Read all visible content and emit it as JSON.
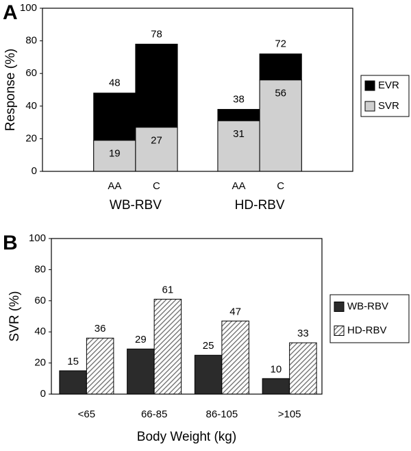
{
  "chart_data": [
    {
      "type": "bar",
      "mode": "overlay",
      "panel": "A",
      "ylabel": "Response (%)",
      "categories": [
        "AA",
        "C",
        "AA",
        "C"
      ],
      "groups": [
        "WB-RBV",
        "HD-RBV"
      ],
      "series": [
        {
          "name": "EVR",
          "color": "#000000",
          "values": [
            48,
            78,
            38,
            72
          ],
          "label_position": "above"
        },
        {
          "name": "SVR",
          "color": "#d0d0d0",
          "values": [
            19,
            27,
            31,
            56
          ],
          "label_position": "inside"
        }
      ],
      "ylim": [
        0,
        100
      ],
      "yticks": [
        0,
        20,
        40,
        60,
        80,
        100
      ],
      "grid": false,
      "legend": "right"
    },
    {
      "type": "bar",
      "mode": "grouped",
      "panel": "B",
      "ylabel": "SVR (%)",
      "xlabel": "Body Weight (kg)",
      "categories": [
        "<65",
        "66-85",
        "86-105",
        ">105"
      ],
      "series": [
        {
          "name": "WB-RBV",
          "color": "#2b2b2b",
          "hatch": false,
          "values": [
            15,
            29,
            25,
            10
          ]
        },
        {
          "name": "HD-RBV",
          "color": "#6a6a6a",
          "hatch": true,
          "values": [
            36,
            61,
            47,
            33
          ]
        }
      ],
      "ylim": [
        0,
        100
      ],
      "yticks": [
        0,
        20,
        40,
        60,
        80,
        100
      ],
      "grid": false,
      "legend": "right"
    }
  ]
}
